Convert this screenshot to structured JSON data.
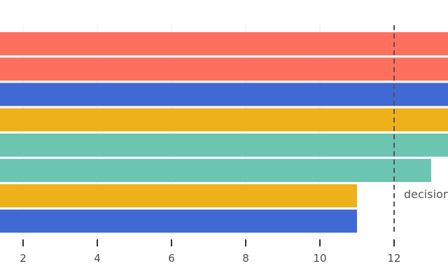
{
  "chart_data": {
    "type": "bar",
    "orientation": "horizontal",
    "title": "",
    "xlabel": "",
    "ylabel": "",
    "xlim": [
      1.4,
      13.5
    ],
    "x_ticks": [
      2,
      4,
      6,
      8,
      10,
      12
    ],
    "grid": "vertical gridlines",
    "bars": [
      {
        "value": 14,
        "color": "#FF6F5E"
      },
      {
        "value": 14,
        "color": "#FF6F5E"
      },
      {
        "value": 14,
        "color": "#4169D4"
      },
      {
        "value": 14,
        "color": "#EEB11A"
      },
      {
        "value": 14,
        "color": "#6BC5B0"
      },
      {
        "value": 13,
        "color": "#6BC5B0"
      },
      {
        "value": 11,
        "color": "#EEB11A"
      },
      {
        "value": 11,
        "color": "#4169D4"
      }
    ],
    "reference_line": {
      "value": 12,
      "style": "dashed",
      "color": "#555555",
      "label": "decision"
    }
  }
}
